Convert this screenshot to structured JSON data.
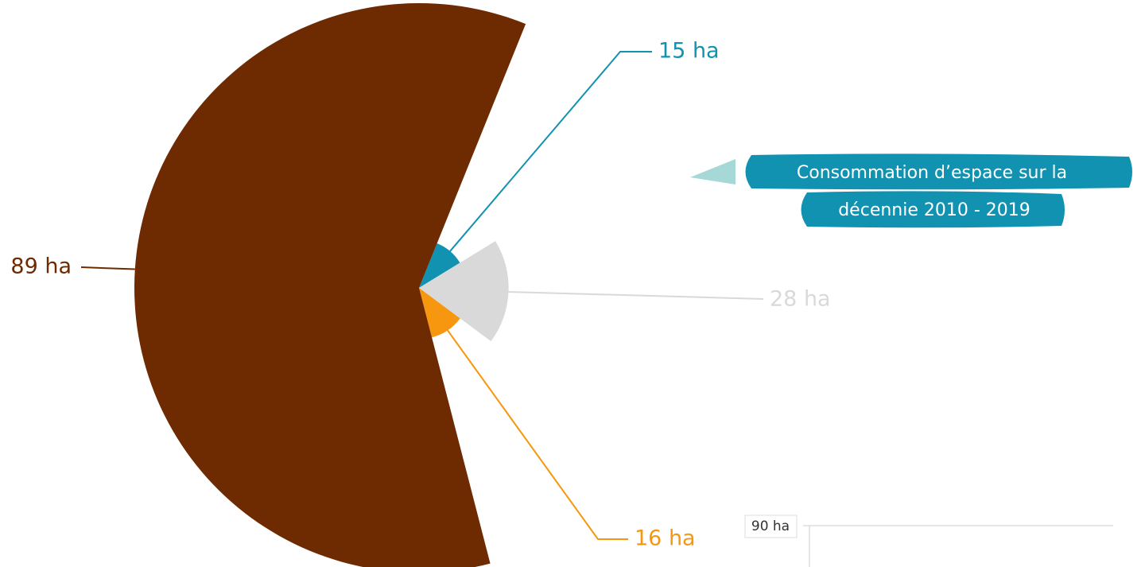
{
  "chart_data": {
    "type": "pie",
    "title": [
      "Consommation d’espace sur la",
      "décennie 2010 - 2019"
    ],
    "series": [
      {
        "name": null,
        "color": "#1192b0",
        "values": [
          15
        ],
        "value_labels": [
          "15 ha"
        ]
      },
      {
        "name": null,
        "color": "#d9d9d9",
        "values": [
          28
        ],
        "value_labels": [
          "28 ha"
        ]
      },
      {
        "name": null,
        "color": "#f7960f",
        "values": [
          16
        ],
        "value_labels": [
          "16 ha"
        ]
      },
      {
        "name": null,
        "color": "#6e2a00",
        "values": [
          89
        ],
        "value_labels": [
          "89 ha"
        ]
      }
    ]
  },
  "axis_fragment": {
    "tick_label": "90 ha"
  }
}
